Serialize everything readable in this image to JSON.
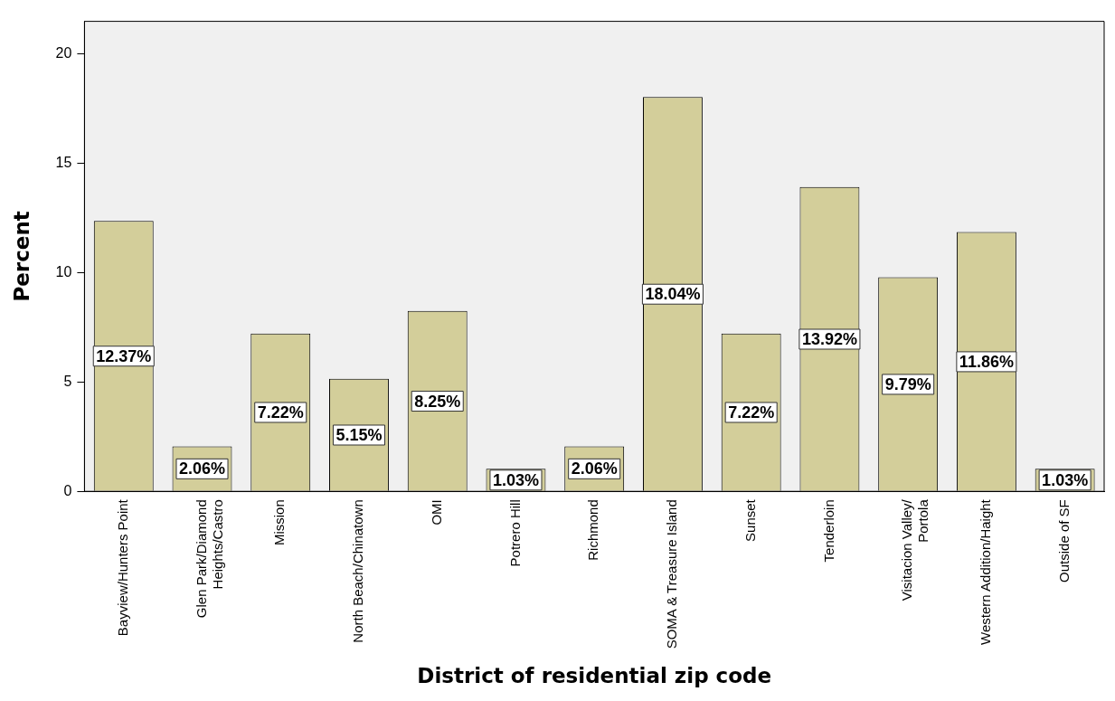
{
  "chart_data": {
    "type": "bar",
    "xlabel": "District of residential zip code",
    "ylabel": "Percent",
    "categories": [
      "Bayview/Hunters Point",
      "Glen Park/Diamond Heights/Castro",
      "Mission",
      "North Beach/Chinatown",
      "OMI",
      "Potrero Hill",
      "Richmond",
      "SOMA & Treasure Island",
      "Sunset",
      "Tenderloin",
      "Visitacion Valley/Portola",
      "Western Addition/Haight",
      "Outside of SF"
    ],
    "values": [
      12.37,
      2.06,
      7.22,
      5.15,
      8.25,
      1.03,
      2.06,
      18.04,
      7.22,
      13.92,
      9.79,
      11.86,
      1.03
    ],
    "value_labels": [
      "12.37%",
      "2.06%",
      "7.22%",
      "5.15%",
      "8.25%",
      "1.03%",
      "2.06%",
      "18.04%",
      "7.22%",
      "13.92%",
      "9.79%",
      "11.86%",
      "1.03%"
    ],
    "color": "#d3ce9a",
    "ylim": [
      0,
      21.5
    ],
    "yticks": [
      0,
      5,
      10,
      15,
      20
    ],
    "grid": false,
    "legend": false
  }
}
